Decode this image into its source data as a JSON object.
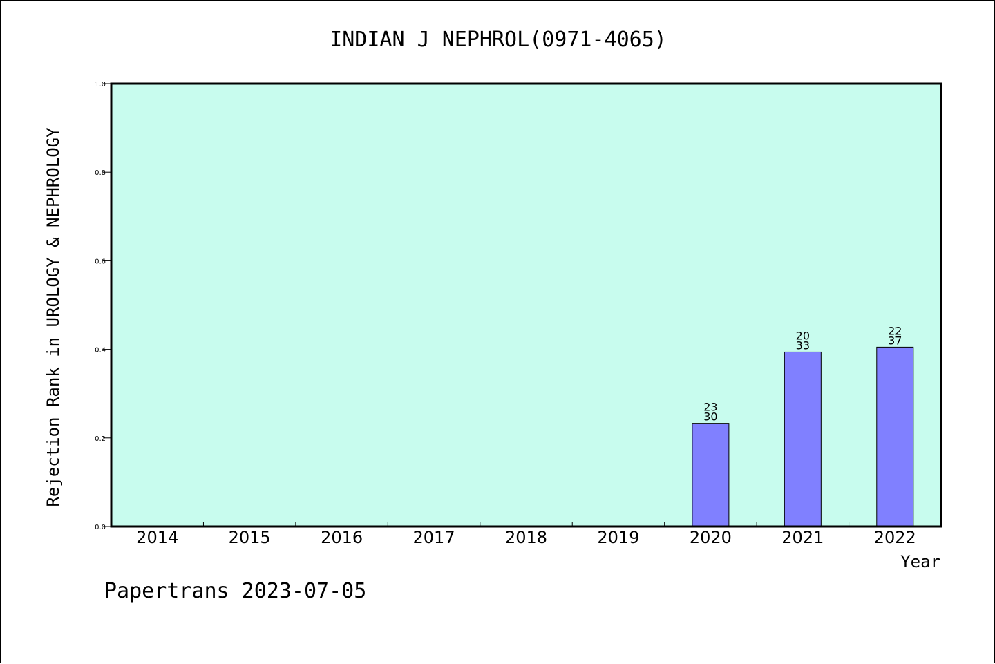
{
  "chart_data": {
    "type": "bar",
    "title": "INDIAN J NEPHROL(0971-4065)",
    "xlabel": "Year",
    "ylabel": "Rejection Rank in UROLOGY & NEPHROLOGY",
    "categories": [
      "2014",
      "2015",
      "2016",
      "2017",
      "2018",
      "2019",
      "2020",
      "2021",
      "2022"
    ],
    "values": [
      null,
      null,
      null,
      null,
      null,
      null,
      0.233,
      0.394,
      0.405
    ],
    "bar_labels": [
      null,
      null,
      null,
      null,
      null,
      null,
      {
        "top": "23",
        "bottom": "30"
      },
      {
        "top": "20",
        "bottom": "33"
      },
      {
        "top": "22",
        "bottom": "37"
      }
    ],
    "ylim": [
      0,
      1.0
    ],
    "yticks": [
      "0.0",
      "0.2",
      "0.4",
      "0.6",
      "0.8",
      "1.0"
    ],
    "grid": false,
    "colors": {
      "plot_background": "#c8fcee",
      "bar_fill": "#8080ff",
      "axis": "#000000"
    }
  },
  "footer": "Papertrans 2023-07-05"
}
